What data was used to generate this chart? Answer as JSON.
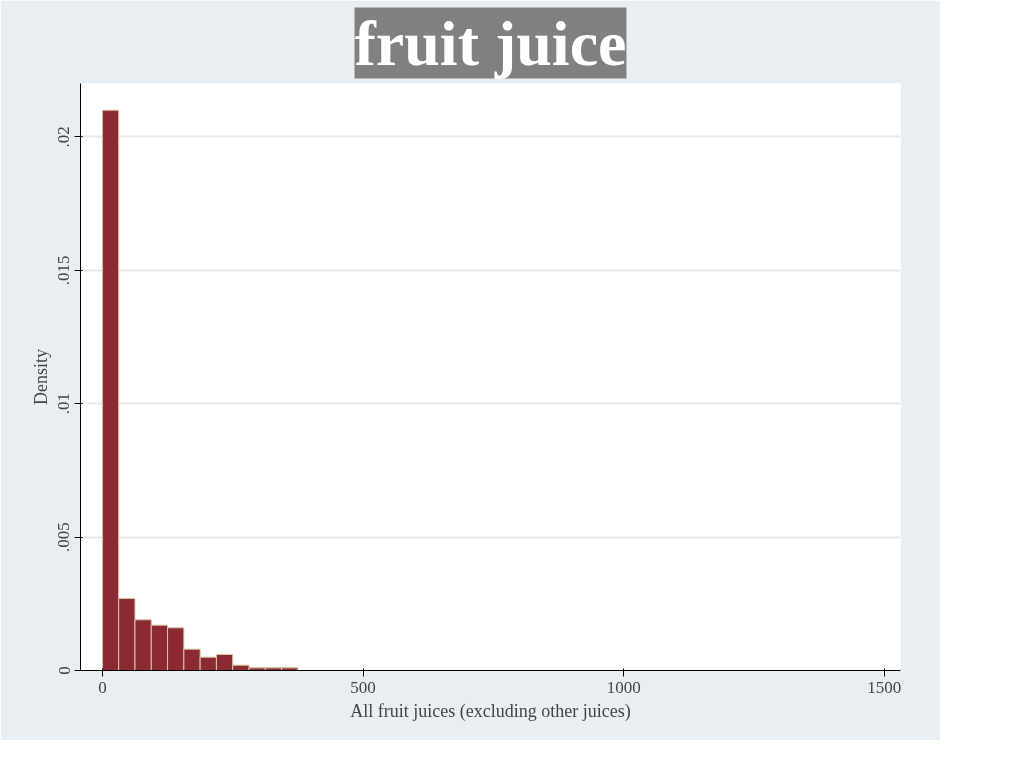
{
  "chart_data": {
    "type": "histogram",
    "title": "fruit juice",
    "xlabel": "All fruit juices (excluding other juices)",
    "ylabel": "Density",
    "bins": [
      0,
      31.25,
      62.5,
      93.75,
      125,
      156.25,
      187.5,
      218.75,
      250,
      281.25,
      312.5,
      343.75,
      375
    ],
    "values": [
      0.021,
      0.0027,
      0.0019,
      0.0017,
      0.0016,
      0.0008,
      0.0005,
      0.0006,
      0.0002,
      0.0001,
      0.0001,
      0.0001
    ],
    "color": "#8b2a35",
    "xlim": [
      -42,
      1531
    ],
    "ylim": [
      0,
      0.022
    ],
    "xticks": [
      0,
      500,
      1000,
      1500
    ],
    "yticks": [
      {
        "value": 0,
        "label": "0"
      },
      {
        "value": 0.005,
        "label": ".005"
      },
      {
        "value": 0.01,
        "label": ".01"
      },
      {
        "value": 0.015,
        "label": ".015"
      },
      {
        "value": 0.02,
        "label": ".02"
      }
    ],
    "grid": "y"
  }
}
